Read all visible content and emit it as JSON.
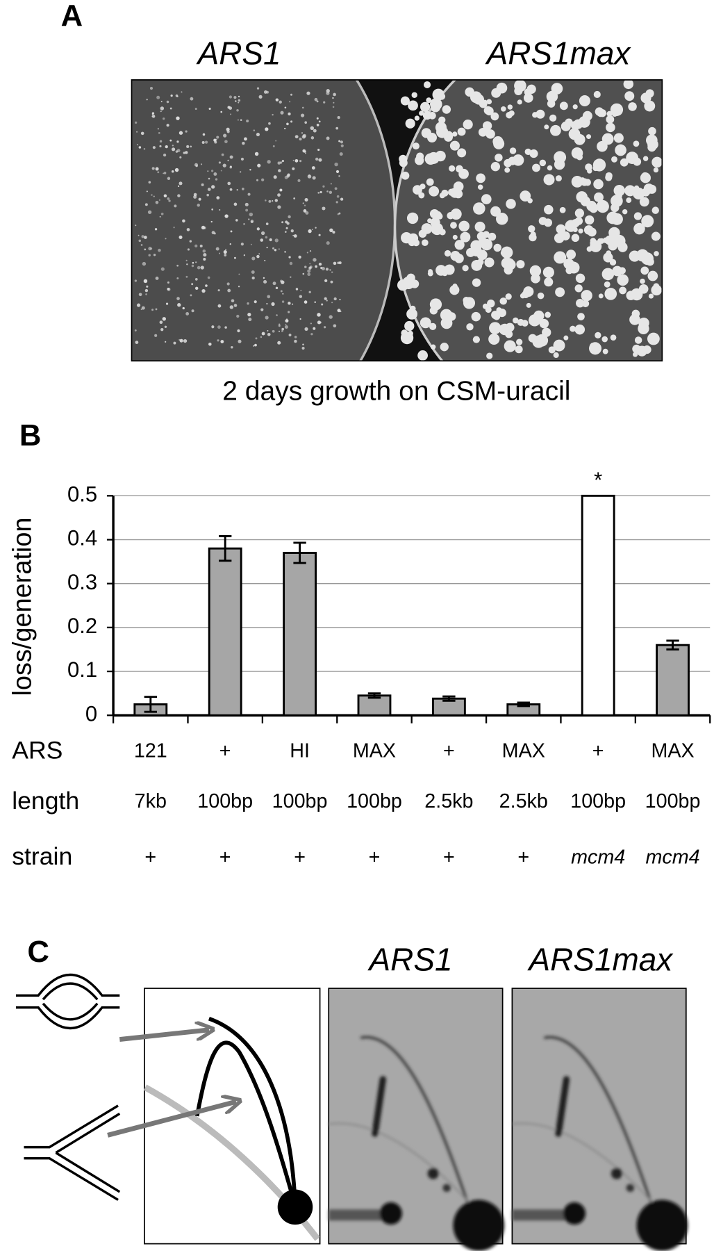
{
  "panel_a": {
    "label": "A",
    "titles": [
      "ARS1",
      "ARS1max"
    ],
    "caption": "2 days growth on CSM-uracil"
  },
  "chart_data": {
    "type": "bar",
    "label": "B",
    "y_label": "loss/generation",
    "category_rows": [
      {
        "name": "ARS",
        "labels": [
          "121",
          "+",
          "HI",
          "MAX",
          "+",
          "MAX",
          "+",
          "MAX"
        ]
      },
      {
        "name": "length",
        "labels": [
          "7kb",
          "100bp",
          "100bp",
          "100bp",
          "2.5kb",
          "2.5kb",
          "100bp",
          "100bp"
        ]
      },
      {
        "name": "strain",
        "labels": [
          "+",
          "+",
          "+",
          "+",
          "+",
          "+",
          "mcm4",
          "mcm4"
        ]
      }
    ],
    "values": [
      0.025,
      0.38,
      0.37,
      0.045,
      0.038,
      0.025,
      0.5,
      0.16
    ],
    "errors": [
      0.017,
      0.028,
      0.023,
      0.005,
      0.005,
      0.004,
      null,
      0.01
    ],
    "colors": [
      "#a6a6a6",
      "#a6a6a6",
      "#a6a6a6",
      "#a6a6a6",
      "#a6a6a6",
      "#a6a6a6",
      "#ffffff",
      "#a6a6a6"
    ],
    "value_annotations": [
      null,
      null,
      null,
      null,
      null,
      null,
      "*",
      null
    ],
    "ylim": [
      0,
      0.5
    ],
    "yticks": [
      0,
      0.1,
      0.2,
      0.3,
      0.4,
      0.5
    ],
    "grid": true
  },
  "panel_c": {
    "label": "C",
    "titles": [
      "ARS1",
      "ARS1max"
    ]
  }
}
